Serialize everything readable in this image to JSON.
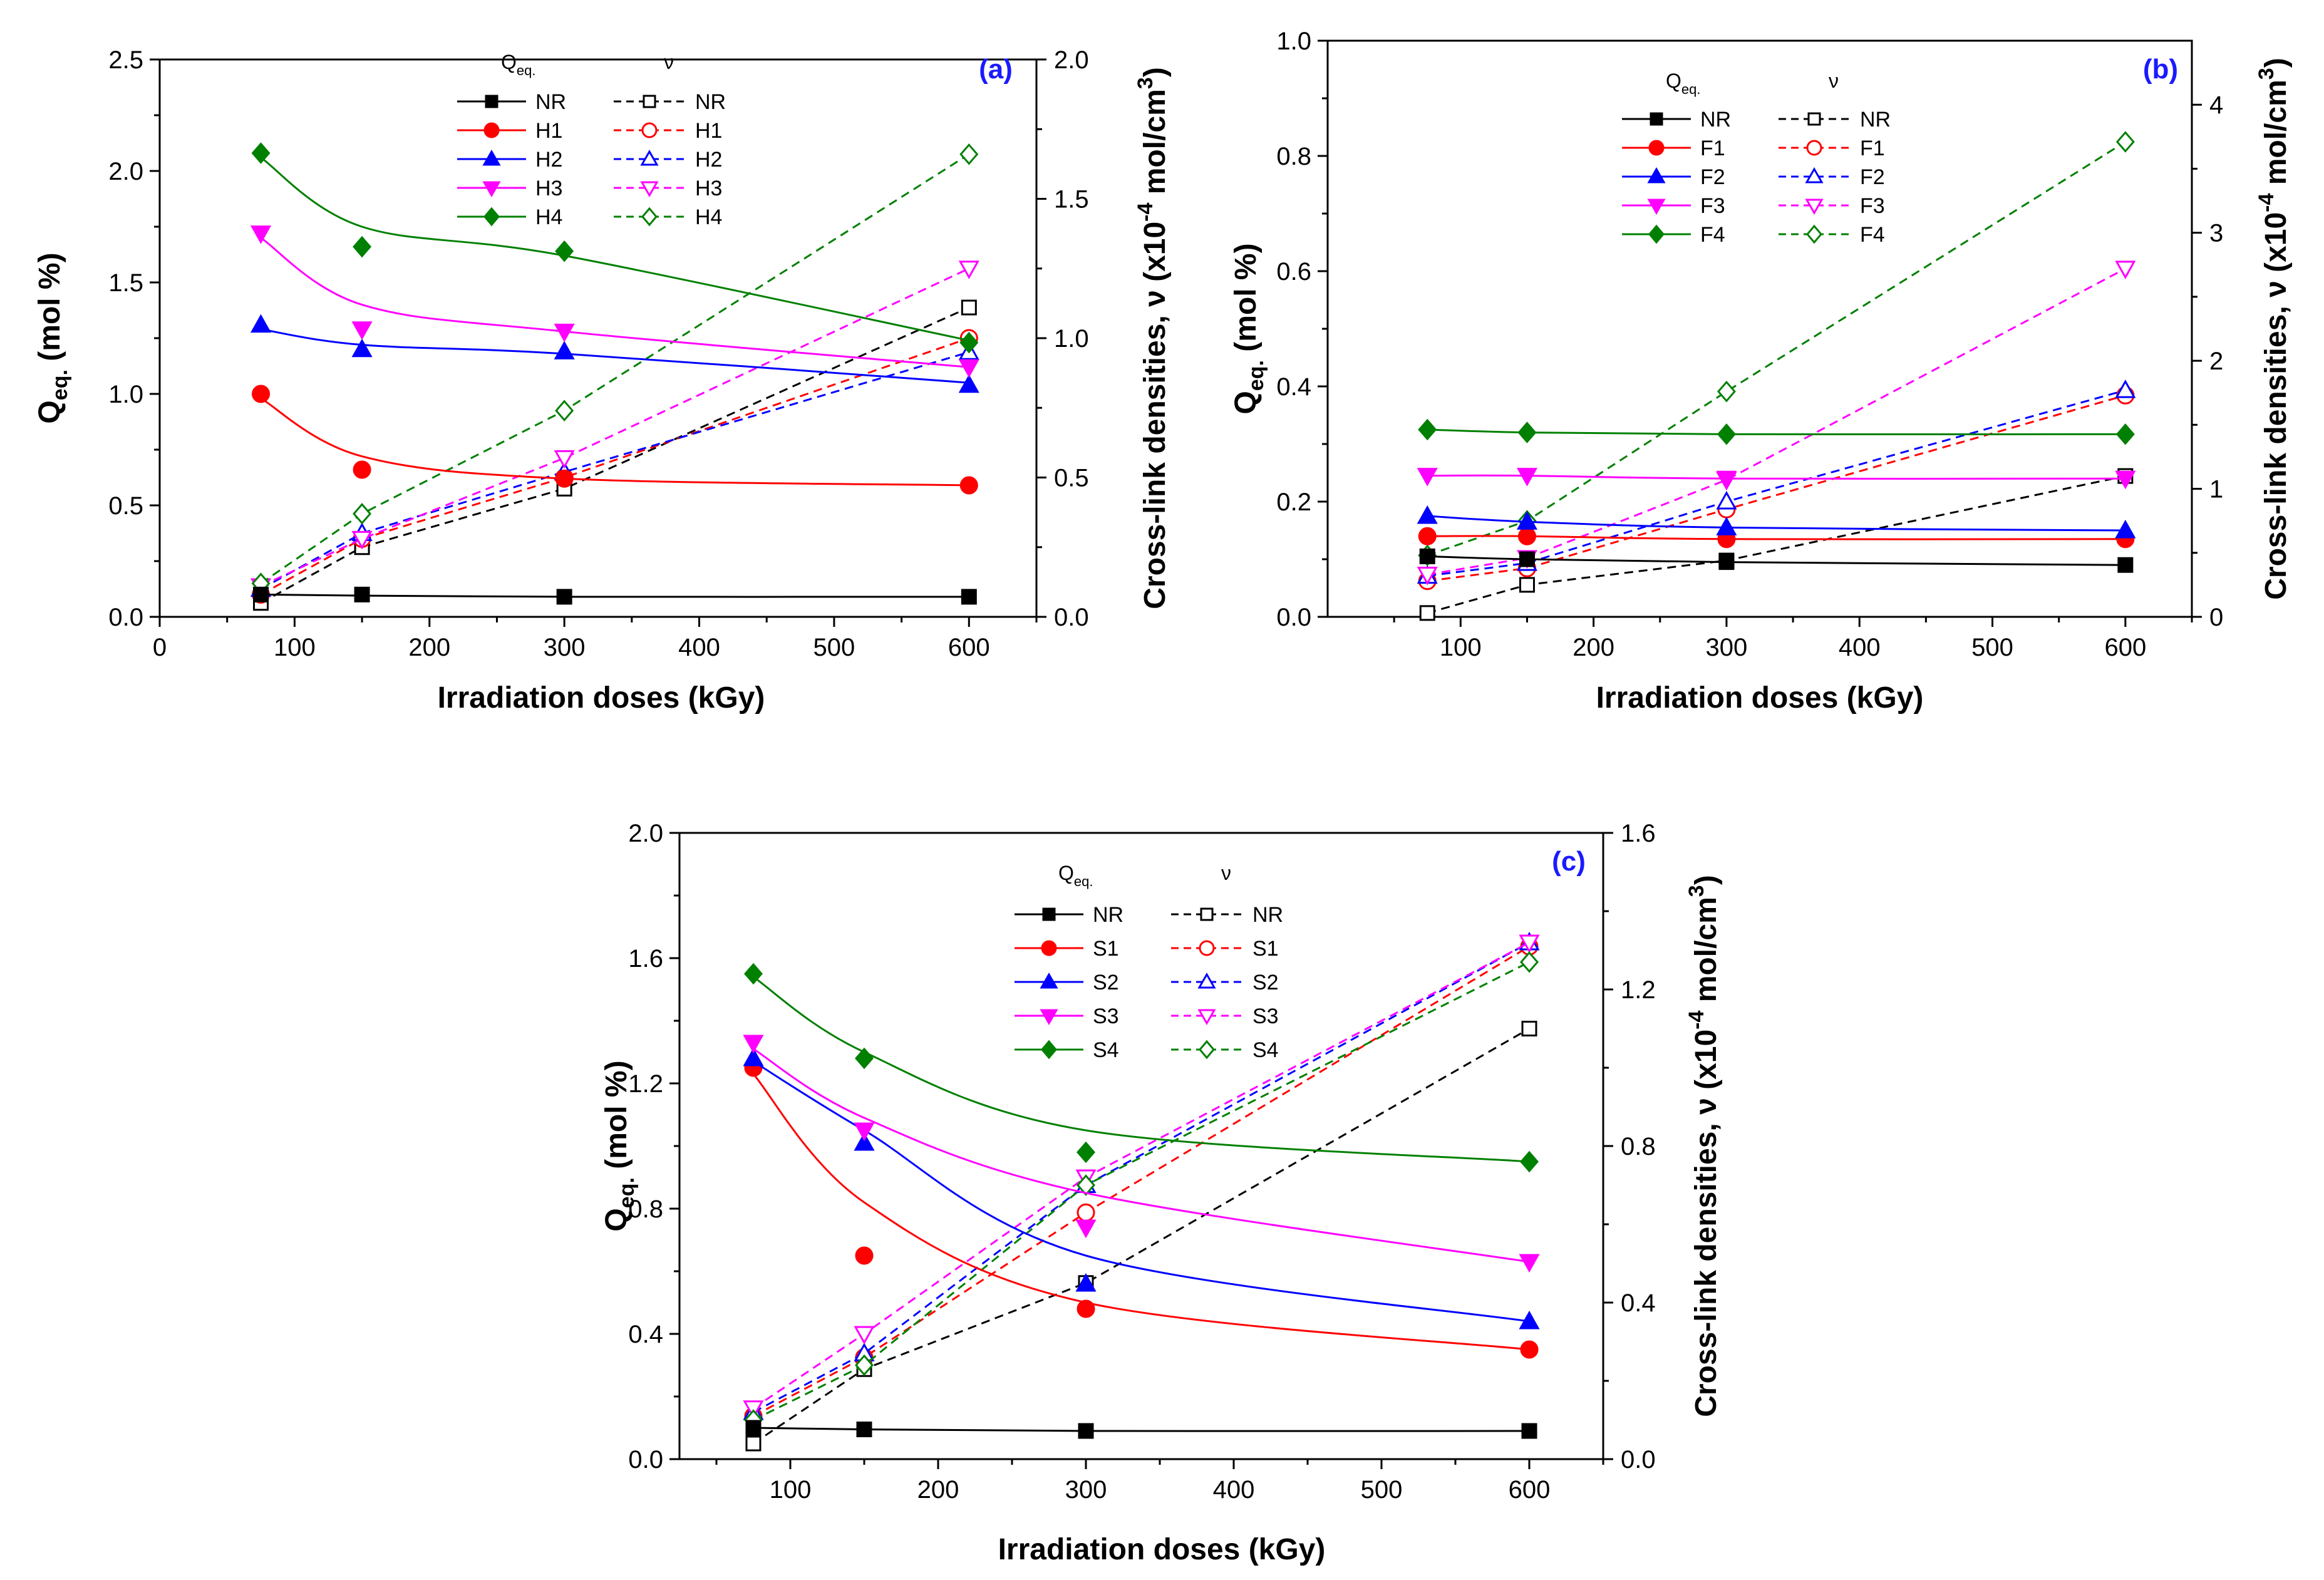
{
  "figure": {
    "colors": {
      "NR": "#000000",
      "1": "#ff0000",
      "2": "#0000ff",
      "3": "#ff00ff",
      "4": "#008000"
    },
    "markers": {
      "NR": "square",
      "1": "circle",
      "2": "triangle-up",
      "3": "triangle-down",
      "4": "diamond"
    }
  },
  "chart_data": [
    {
      "type": "scatter",
      "panel_label": "(a)",
      "xlabel": "Irradiation doses (kGy)",
      "ylabel_left": "Q",
      "ylabel_left_sub": "eq.",
      "ylabel_left_suffix": " (mol %)",
      "ylabel_right_pre": "Cross-link densities, ν (x10",
      "ylabel_right_exp": "-4",
      "ylabel_right_mid": " mol/cm",
      "ylabel_right_exp2": "3",
      "ylabel_right_post": ")",
      "legend_head_q": "Q",
      "legend_head_q_sub": "eq.",
      "legend_head_v": "ν",
      "xlim": [
        0,
        650
      ],
      "xticks": [
        0,
        100,
        200,
        300,
        400,
        500,
        600
      ],
      "ylim_left": [
        0,
        2.5
      ],
      "yticks_left": [
        "0.0",
        "0.5",
        "1.0",
        "1.5",
        "2.0",
        "2.5"
      ],
      "ylim_right": [
        0,
        2.0
      ],
      "yticks_right": [
        "0.0",
        "0.5",
        "1.0",
        "1.5",
        "2.0"
      ],
      "x": [
        75,
        150,
        300,
        600
      ],
      "series_q": [
        {
          "name": "NR",
          "values": [
            0.1,
            0.1,
            0.09,
            0.09
          ],
          "fit": [
            0.1,
            0.095,
            0.09,
            0.09
          ]
        },
        {
          "name": "H1",
          "values": [
            1.0,
            0.66,
            0.62,
            0.59
          ],
          "fit": [
            0.98,
            0.72,
            0.62,
            0.59
          ]
        },
        {
          "name": "H2",
          "values": [
            1.31,
            1.2,
            1.19,
            1.04
          ],
          "fit": [
            1.29,
            1.22,
            1.18,
            1.05
          ]
        },
        {
          "name": "H3",
          "values": [
            1.72,
            1.29,
            1.28,
            1.12
          ],
          "fit": [
            1.7,
            1.4,
            1.28,
            1.12
          ]
        },
        {
          "name": "H4",
          "values": [
            2.08,
            1.66,
            1.64,
            1.23
          ],
          "fit": [
            2.06,
            1.75,
            1.62,
            1.24
          ]
        }
      ],
      "series_v": [
        {
          "name": "NR",
          "values": [
            0.05,
            0.25,
            0.46,
            1.11
          ]
        },
        {
          "name": "H1",
          "values": [
            0.08,
            0.28,
            0.5,
            1.0
          ]
        },
        {
          "name": "H2",
          "values": [
            0.1,
            0.3,
            0.52,
            0.95
          ]
        },
        {
          "name": "H3",
          "values": [
            0.11,
            0.28,
            0.57,
            1.25
          ]
        },
        {
          "name": "H4",
          "values": [
            0.12,
            0.37,
            0.74,
            1.66
          ]
        }
      ]
    },
    {
      "type": "scatter",
      "panel_label": "(b)",
      "xlabel": "Irradiation doses (kGy)",
      "ylabel_left": "Q",
      "ylabel_left_sub": "eq.",
      "ylabel_left_suffix": " (mol %)",
      "ylabel_right_pre": "Cross-link densities, ν (x10",
      "ylabel_right_exp": "-4",
      "ylabel_right_mid": " mol/cm",
      "ylabel_right_exp2": "3",
      "ylabel_right_post": ")",
      "legend_head_q": "Q",
      "legend_head_q_sub": "eq.",
      "legend_head_v": "ν",
      "xlim": [
        0,
        650
      ],
      "xticks": [
        100,
        200,
        300,
        400,
        500,
        600
      ],
      "ylim_left": [
        0,
        1.0
      ],
      "yticks_left": [
        "0.0",
        "0.2",
        "0.4",
        "0.6",
        "0.8",
        "1.0"
      ],
      "ylim_right": [
        0,
        4.5
      ],
      "yticks_right": [
        "0",
        "1",
        "2",
        "3",
        "4"
      ],
      "x": [
        75,
        150,
        300,
        600
      ],
      "series_q": [
        {
          "name": "NR",
          "values": [
            0.105,
            0.1,
            0.095,
            0.09
          ],
          "fit": [
            0.105,
            0.1,
            0.095,
            0.09
          ]
        },
        {
          "name": "F1",
          "values": [
            0.14,
            0.14,
            0.135,
            0.135
          ],
          "fit": [
            0.14,
            0.14,
            0.135,
            0.135
          ]
        },
        {
          "name": "F2",
          "values": [
            0.175,
            0.165,
            0.155,
            0.15
          ],
          "fit": [
            0.175,
            0.165,
            0.155,
            0.15
          ]
        },
        {
          "name": "F3",
          "values": [
            0.245,
            0.245,
            0.24,
            0.24
          ],
          "fit": [
            0.245,
            0.245,
            0.24,
            0.24
          ]
        },
        {
          "name": "F4",
          "values": [
            0.325,
            0.32,
            0.317,
            0.317
          ],
          "fit": [
            0.325,
            0.32,
            0.317,
            0.317
          ]
        }
      ],
      "series_v": [
        {
          "name": "NR",
          "values": [
            0.03,
            0.25,
            0.44,
            1.1
          ]
        },
        {
          "name": "F1",
          "values": [
            0.28,
            0.38,
            0.84,
            1.73
          ]
        },
        {
          "name": "F2",
          "values": [
            0.32,
            0.42,
            0.9,
            1.77
          ]
        },
        {
          "name": "F3",
          "values": [
            0.33,
            0.46,
            1.07,
            2.72
          ]
        },
        {
          "name": "F4",
          "values": [
            0.48,
            0.75,
            1.76,
            3.71
          ]
        }
      ]
    },
    {
      "type": "scatter",
      "panel_label": "(c)",
      "xlabel": "Irradiation doses (kGy)",
      "ylabel_left": "Q",
      "ylabel_left_sub": "eq.",
      "ylabel_left_suffix": " (mol %)",
      "ylabel_right_pre": "Cross-link densities, ν (x10",
      "ylabel_right_exp": "-4",
      "ylabel_right_mid": " mol/cm",
      "ylabel_right_exp2": "3",
      "ylabel_right_post": ")",
      "legend_head_q": "Q",
      "legend_head_q_sub": "eq.",
      "legend_head_v": "ν",
      "xlim": [
        25,
        650
      ],
      "xticks": [
        100,
        200,
        300,
        400,
        500,
        600
      ],
      "ylim_left": [
        0,
        2.0
      ],
      "yticks_left": [
        "0.0",
        "0.4",
        "0.8",
        "1.2",
        "1.6",
        "2.0"
      ],
      "ylim_right": [
        0,
        1.6
      ],
      "yticks_right": [
        "0.0",
        "0.4",
        "0.8",
        "1.2",
        "1.6"
      ],
      "x": [
        75,
        150,
        300,
        600
      ],
      "series_q": [
        {
          "name": "NR",
          "values": [
            0.1,
            0.095,
            0.09,
            0.09
          ],
          "fit": [
            0.1,
            0.095,
            0.09,
            0.09
          ]
        },
        {
          "name": "S1",
          "values": [
            1.25,
            0.65,
            0.48,
            0.35
          ],
          "fit": [
            1.23,
            0.82,
            0.5,
            0.35
          ]
        },
        {
          "name": "S2",
          "values": [
            1.28,
            1.01,
            0.56,
            0.44
          ],
          "fit": [
            1.27,
            1.05,
            0.65,
            0.44
          ]
        },
        {
          "name": "S3",
          "values": [
            1.33,
            1.05,
            0.74,
            0.63
          ],
          "fit": [
            1.31,
            1.09,
            0.85,
            0.63
          ]
        },
        {
          "name": "S4",
          "values": [
            1.55,
            1.28,
            0.98,
            0.95
          ],
          "fit": [
            1.54,
            1.3,
            1.05,
            0.95
          ]
        }
      ],
      "series_v": [
        {
          "name": "NR",
          "values": [
            0.04,
            0.23,
            0.45,
            1.1
          ]
        },
        {
          "name": "S1",
          "values": [
            0.11,
            0.26,
            0.63,
            1.31
          ]
        },
        {
          "name": "S2",
          "values": [
            0.12,
            0.27,
            0.7,
            1.32
          ]
        },
        {
          "name": "S3",
          "values": [
            0.13,
            0.32,
            0.72,
            1.32
          ]
        },
        {
          "name": "S4",
          "values": [
            0.1,
            0.24,
            0.7,
            1.27
          ]
        }
      ]
    }
  ]
}
